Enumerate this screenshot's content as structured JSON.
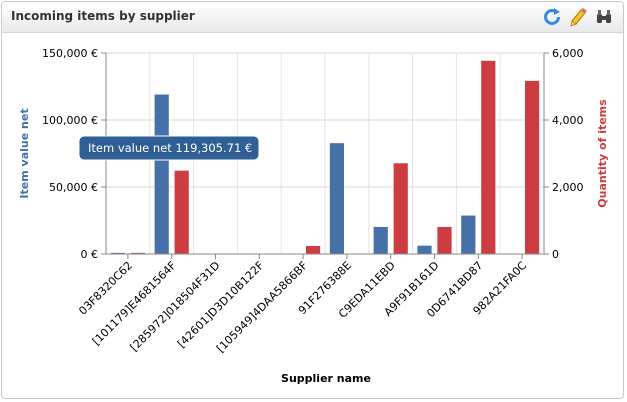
{
  "widget": {
    "title": "Incoming items by supplier",
    "toolbar": [
      {
        "name": "refresh-icon",
        "color": "#2e8ee0"
      },
      {
        "name": "pencil-icon",
        "color": "#e8a400"
      },
      {
        "name": "binoculars-icon",
        "color": "#444444"
      }
    ]
  },
  "tooltip": {
    "text": "Item value net 119,305.71 €",
    "category_index": 1
  },
  "colors": {
    "value_series": "#4571a8",
    "quantity_series": "#cc3c40",
    "tooltip_bg": "#2f5f94"
  },
  "chart_data": {
    "type": "bar",
    "title": "",
    "xlabel": "Supplier name",
    "ylabel": "Item value net",
    "y2label": "Quantity of items",
    "ylim": [
      0,
      150000
    ],
    "y2lim": [
      0,
      6000
    ],
    "yticks": [
      "0 €",
      "50,000 €",
      "100,000 €",
      "150,000 €"
    ],
    "y2ticks": [
      "0",
      "2,000",
      "4,000",
      "6,000"
    ],
    "categories": [
      "03F8320C62",
      "[101179]E4681564F",
      "[285972]018504F31D",
      "[42601]D3D10B122F",
      "[105949]4DAA5866BF",
      "91F276388E",
      "C9EDA11EBD",
      "A9F91B161D",
      "0D6741BD87",
      "982A21FA0C"
    ],
    "series": [
      {
        "name": "Item value net",
        "axis": "left",
        "values": [
          500,
          119305.71,
          0,
          0,
          0,
          83000,
          20500,
          6500,
          29000,
          0
        ]
      },
      {
        "name": "Quantity of items",
        "axis": "right",
        "values": [
          25,
          2500,
          0,
          0,
          250,
          0,
          2720,
          820,
          5780,
          5180
        ]
      }
    ],
    "grid": true,
    "legend": "none"
  }
}
